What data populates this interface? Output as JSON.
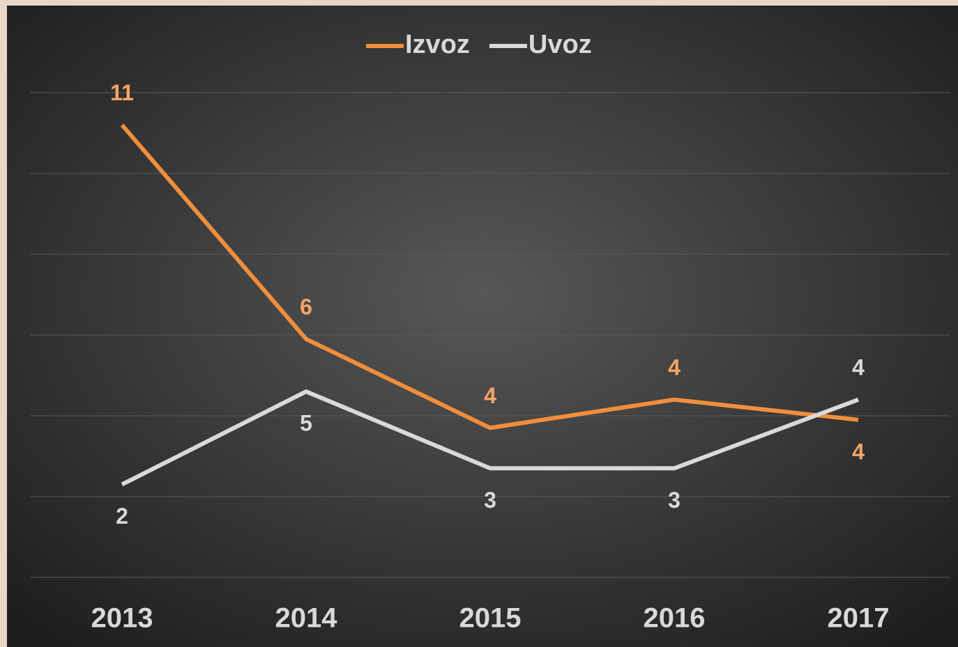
{
  "chart_data": {
    "type": "line",
    "categories": [
      "2013",
      "2014",
      "2015",
      "2016",
      "2017"
    ],
    "series": [
      {
        "name": "Izvoz",
        "color": "#f28e3c",
        "label_color": "#f9a565",
        "values": [
          11.2,
          5.9,
          3.7,
          4.4,
          3.9
        ],
        "value_labels": [
          "11",
          "6",
          "4",
          "4",
          "4"
        ]
      },
      {
        "name": "Uvoz",
        "color": "#d9d9d9",
        "label_color": "#d9d9d9",
        "values": [
          2.3,
          4.6,
          2.7,
          2.7,
          4.4
        ],
        "value_labels": [
          "2",
          "5",
          "3",
          "3",
          "4"
        ]
      }
    ],
    "ylim": [
      0,
      12
    ],
    "yticks": [
      0,
      2,
      4,
      6,
      8,
      10,
      12
    ],
    "grid": true,
    "legend": "top"
  }
}
